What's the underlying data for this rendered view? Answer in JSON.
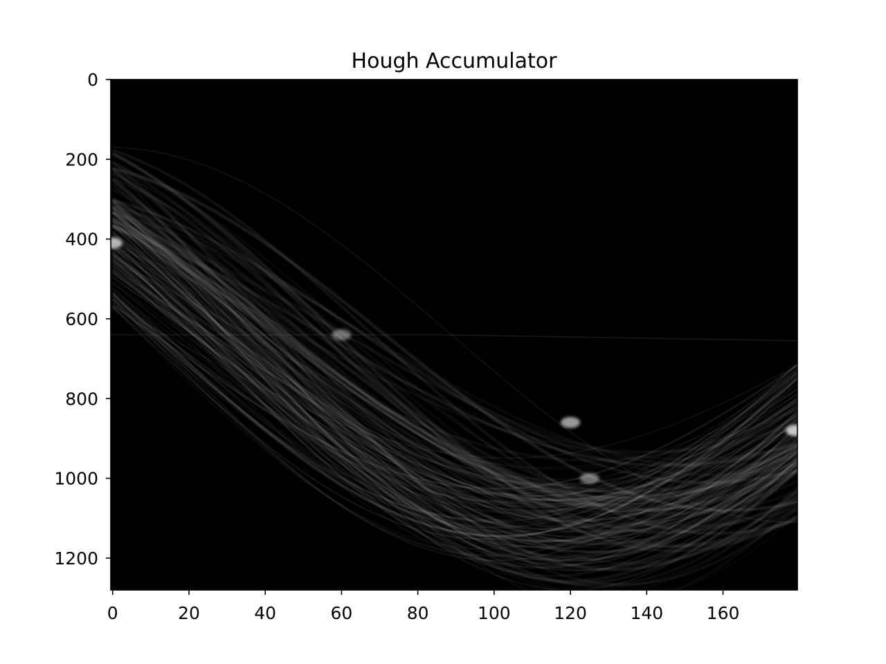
{
  "chart_data": {
    "type": "heatmap",
    "title": "Hough Accumulator",
    "xlabel": "",
    "ylabel": "",
    "colormap": "gray",
    "background": "#000000",
    "x_range": [
      -0.5,
      179.5
    ],
    "y_range": [
      1280,
      0
    ],
    "x_ticks": [
      0,
      20,
      40,
      60,
      80,
      100,
      120,
      140,
      160
    ],
    "y_ticks": [
      0,
      200,
      400,
      600,
      800,
      1000,
      1200
    ],
    "x_tick_labels": [
      "0",
      "20",
      "40",
      "60",
      "80",
      "100",
      "120",
      "140",
      "160"
    ],
    "y_tick_labels": [
      "0",
      "200",
      "400",
      "600",
      "800",
      "1000",
      "1200"
    ],
    "grid": false,
    "bright_regions": [
      {
        "theta": 0,
        "rho": 410,
        "intensity": 0.85
      },
      {
        "theta": 120,
        "rho": 860,
        "intensity": 0.7
      },
      {
        "theta": 179,
        "rho": 880,
        "intensity": 1.0
      },
      {
        "theta": 125,
        "rho": 1000,
        "intensity": 0.35
      },
      {
        "theta": 60,
        "rho": 640,
        "intensity": 0.3
      }
    ]
  }
}
